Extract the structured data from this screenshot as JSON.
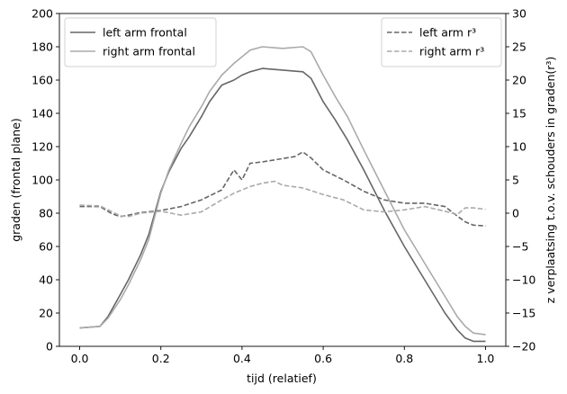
{
  "chart_data": {
    "type": "line",
    "xlabel": "tijd (relatief)",
    "ylabel_left": "graden (frontal plane)",
    "ylabel_right": "z verplaatsing t.o.v. schouders in graden(r³)",
    "xlim": [
      -0.05,
      1.05
    ],
    "ylim_left": [
      0,
      200
    ],
    "ylim_right": [
      -20,
      30
    ],
    "xticks": [
      "0.0",
      "0.2",
      "0.4",
      "0.6",
      "0.8",
      "1.0"
    ],
    "yticks_left": [
      "0",
      "20",
      "40",
      "60",
      "80",
      "100",
      "120",
      "140",
      "160",
      "180",
      "200"
    ],
    "yticks_right": [
      "−20",
      "−15",
      "−10",
      "−5",
      "0",
      "5",
      "10",
      "15",
      "20",
      "25",
      "30"
    ],
    "legend_left_placement": "top-left",
    "legend_right_placement": "top-right",
    "series": [
      {
        "name": "left arm frontal",
        "axis": "left",
        "style": "solid",
        "color": "#666666",
        "x": [
          0,
          0.05,
          0.07,
          0.1,
          0.12,
          0.15,
          0.17,
          0.2,
          0.22,
          0.25,
          0.27,
          0.3,
          0.32,
          0.35,
          0.38,
          0.4,
          0.42,
          0.45,
          0.5,
          0.55,
          0.57,
          0.6,
          0.63,
          0.66,
          0.7,
          0.75,
          0.8,
          0.85,
          0.9,
          0.93,
          0.95,
          0.97,
          1.0
        ],
        "y": [
          11,
          12,
          18,
          31,
          40,
          55,
          67,
          93,
          105,
          119,
          126,
          138,
          147,
          157,
          160,
          163,
          165,
          167,
          166,
          165,
          161,
          147,
          136,
          124,
          106,
          82,
          60,
          40,
          20,
          10,
          5,
          3,
          3
        ]
      },
      {
        "name": "right arm frontal",
        "axis": "left",
        "style": "solid",
        "color": "#aaaaaa",
        "x": [
          0,
          0.05,
          0.07,
          0.1,
          0.12,
          0.15,
          0.17,
          0.2,
          0.22,
          0.25,
          0.27,
          0.3,
          0.32,
          0.35,
          0.38,
          0.4,
          0.42,
          0.45,
          0.5,
          0.55,
          0.57,
          0.6,
          0.63,
          0.66,
          0.7,
          0.75,
          0.8,
          0.85,
          0.9,
          0.93,
          0.95,
          0.97,
          1.0
        ],
        "y": [
          11,
          12,
          17,
          28,
          37,
          52,
          64,
          92,
          106,
          122,
          132,
          144,
          153,
          163,
          170,
          174,
          178,
          180,
          179,
          180,
          177,
          163,
          150,
          138,
          118,
          94,
          70,
          50,
          30,
          18,
          12,
          8,
          7
        ]
      },
      {
        "name": "left arm r³",
        "axis": "right",
        "style": "dashed",
        "color": "#666666",
        "x": [
          0,
          0.05,
          0.08,
          0.1,
          0.12,
          0.15,
          0.2,
          0.25,
          0.3,
          0.35,
          0.38,
          0.4,
          0.42,
          0.45,
          0.5,
          0.53,
          0.55,
          0.57,
          0.6,
          0.65,
          0.7,
          0.75,
          0.8,
          0.85,
          0.9,
          0.93,
          0.95,
          0.97,
          1.0
        ],
        "y": [
          1.0,
          1.0,
          -0.1,
          -0.5,
          -0.3,
          0.1,
          0.4,
          1.0,
          2.0,
          3.5,
          6.5,
          5.0,
          7.5,
          7.7,
          8.2,
          8.5,
          9.2,
          8.3,
          6.5,
          5.0,
          3.3,
          2.0,
          1.5,
          1.5,
          1.0,
          -0.4,
          -1.3,
          -1.8,
          -1.9
        ]
      },
      {
        "name": "right arm r³",
        "axis": "right",
        "style": "dashed",
        "color": "#aaaaaa",
        "x": [
          0,
          0.05,
          0.08,
          0.1,
          0.12,
          0.15,
          0.2,
          0.25,
          0.3,
          0.35,
          0.38,
          0.4,
          0.42,
          0.45,
          0.48,
          0.5,
          0.55,
          0.6,
          0.65,
          0.7,
          0.75,
          0.8,
          0.85,
          0.9,
          0.93,
          0.95,
          0.97,
          1.0
        ],
        "y": [
          1.2,
          1.1,
          0.2,
          -0.4,
          -0.5,
          0.0,
          0.3,
          -0.3,
          0.2,
          2.0,
          3.0,
          3.5,
          4.0,
          4.5,
          4.8,
          4.2,
          3.8,
          2.8,
          2.0,
          0.5,
          0.2,
          0.5,
          1.0,
          0.3,
          -0.2,
          0.8,
          0.8,
          0.6
        ]
      }
    ]
  }
}
